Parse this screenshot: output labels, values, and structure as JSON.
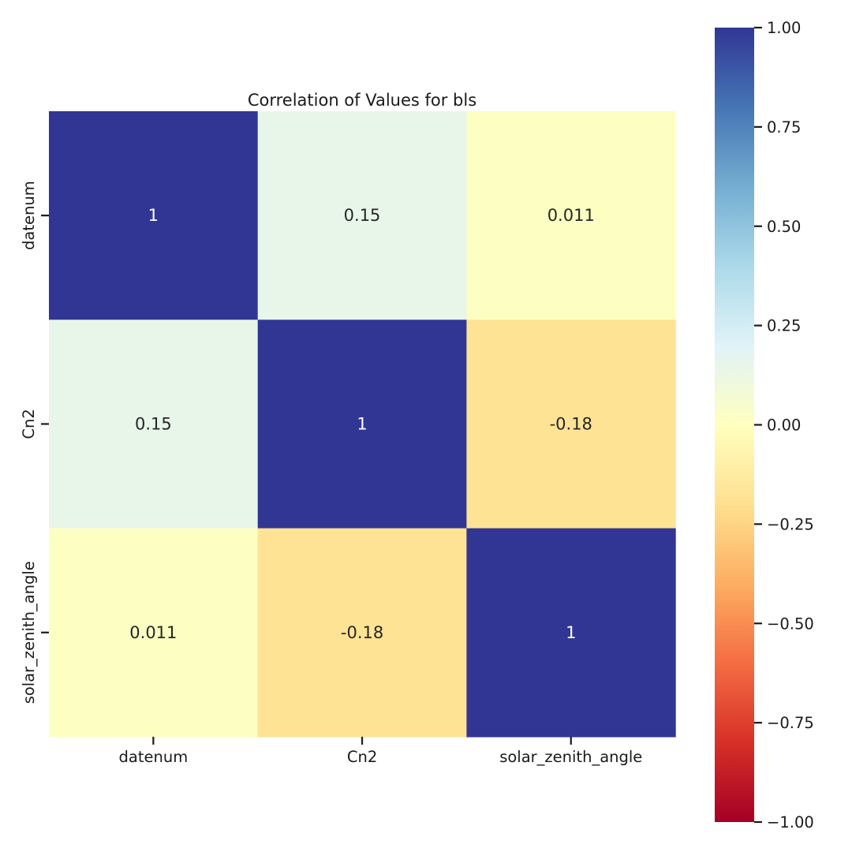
{
  "chart_data": {
    "type": "heatmap",
    "title": "Correlation of Values for bls",
    "x_categories": [
      "datenum",
      "Cn2",
      "solar_zenith_angle"
    ],
    "y_categories": [
      "datenum",
      "Cn2",
      "solar_zenith_angle"
    ],
    "values": [
      [
        1,
        0.15,
        0.011
      ],
      [
        0.15,
        1,
        -0.18
      ],
      [
        0.011,
        -0.18,
        1
      ]
    ],
    "annotations": [
      [
        "1",
        "0.15",
        "0.011"
      ],
      [
        "0.15",
        "1",
        "-0.18"
      ],
      [
        "0.011",
        "-0.18",
        "1"
      ]
    ],
    "colorbar": {
      "colormap": "RdYlBu",
      "range": [
        -1.0,
        1.0
      ],
      "tick_values": [
        1.0,
        0.75,
        0.5,
        0.25,
        0.0,
        -0.25,
        -0.5,
        -0.75,
        -1.0
      ],
      "tick_labels": [
        "1.00",
        "0.75",
        "0.50",
        "0.25",
        "0.00",
        "−0.25",
        "−0.50",
        "−0.75",
        "−1.00"
      ],
      "placement": "right"
    },
    "grid": false
  }
}
